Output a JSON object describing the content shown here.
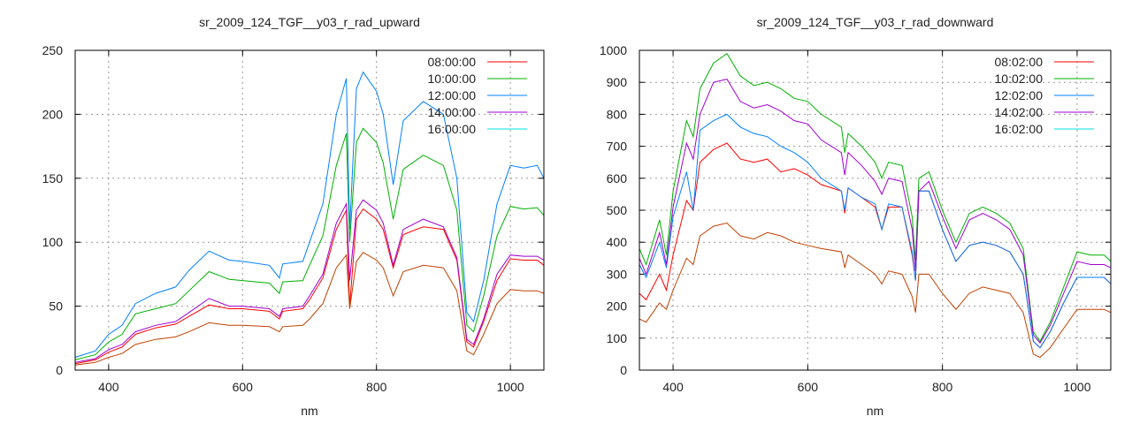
{
  "chart_data": [
    {
      "type": "line",
      "title": "sr_2009_124_TGF__y03_r_rad_upward",
      "xlabel": "nm",
      "ylabel": "",
      "xlim": [
        350,
        1050
      ],
      "ylim": [
        0,
        250
      ],
      "xticks": [
        400,
        600,
        800,
        1000
      ],
      "yticks": [
        0,
        50,
        100,
        150,
        200,
        250
      ],
      "grid": true,
      "legend": "top-right",
      "x": [
        350,
        380,
        400,
        420,
        440,
        470,
        500,
        520,
        550,
        580,
        600,
        640,
        655,
        660,
        690,
        700,
        720,
        740,
        755,
        760,
        770,
        780,
        800,
        810,
        825,
        840,
        870,
        900,
        920,
        935,
        945,
        960,
        980,
        1000,
        1020,
        1040,
        1050
      ],
      "series": [
        {
          "name": "08:00:00",
          "color": "#ff0000",
          "line_color": "#ff0000",
          "values": [
            5,
            8,
            14,
            18,
            28,
            33,
            36,
            42,
            51,
            48,
            48,
            46,
            40,
            46,
            48,
            55,
            72,
            110,
            125,
            50,
            118,
            126,
            118,
            110,
            80,
            106,
            112,
            110,
            86,
            22,
            18,
            38,
            70,
            87,
            86,
            86,
            82
          ]
        },
        {
          "name": "10:00:00",
          "color": "#00b000",
          "line_color": "#00b000",
          "values": [
            8,
            12,
            22,
            28,
            44,
            48,
            52,
            62,
            77,
            71,
            70,
            68,
            60,
            69,
            70,
            82,
            105,
            160,
            185,
            100,
            178,
            189,
            178,
            162,
            118,
            157,
            168,
            160,
            125,
            35,
            30,
            58,
            105,
            128,
            126,
            127,
            121
          ]
        },
        {
          "name": "12:00:00",
          "color": "#0080ff",
          "line_color": "#0080ff",
          "values": [
            10,
            15,
            28,
            35,
            52,
            60,
            65,
            78,
            93,
            86,
            85,
            82,
            72,
            83,
            85,
            100,
            130,
            200,
            228,
            110,
            220,
            233,
            218,
            200,
            145,
            195,
            210,
            200,
            150,
            45,
            38,
            70,
            130,
            160,
            158,
            160,
            150
          ]
        },
        {
          "name": "14:00:00",
          "color": "#a000d0",
          "line_color": "#a000d0",
          "values": [
            6,
            9,
            16,
            20,
            30,
            35,
            38,
            45,
            56,
            50,
            50,
            48,
            42,
            48,
            50,
            58,
            75,
            115,
            130,
            70,
            125,
            133,
            125,
            115,
            82,
            110,
            118,
            112,
            88,
            24,
            20,
            40,
            75,
            90,
            89,
            89,
            86
          ]
        },
        {
          "name": "16:00:00",
          "color": "#00e0e0",
          "line_color": "#c04000",
          "values": [
            4,
            6,
            10,
            13,
            20,
            24,
            26,
            30,
            37,
            35,
            35,
            34,
            30,
            34,
            35,
            40,
            52,
            80,
            90,
            48,
            85,
            92,
            86,
            80,
            58,
            77,
            82,
            80,
            62,
            15,
            12,
            28,
            52,
            63,
            62,
            62,
            60
          ]
        }
      ]
    },
    {
      "type": "line",
      "title": "sr_2009_124_TGF__y03_r_rad_downward",
      "xlabel": "nm",
      "ylabel": "",
      "xlim": [
        350,
        1050
      ],
      "ylim": [
        0,
        1000
      ],
      "xticks": [
        400,
        600,
        800,
        1000
      ],
      "yticks": [
        0,
        100,
        200,
        300,
        400,
        500,
        600,
        700,
        800,
        900,
        1000
      ],
      "grid": true,
      "legend": "top-right",
      "x": [
        350,
        360,
        380,
        390,
        400,
        420,
        430,
        440,
        460,
        480,
        500,
        520,
        540,
        560,
        580,
        600,
        620,
        650,
        655,
        660,
        680,
        700,
        710,
        720,
        740,
        755,
        760,
        765,
        780,
        800,
        820,
        840,
        860,
        880,
        900,
        920,
        935,
        945,
        960,
        980,
        1000,
        1020,
        1040,
        1050
      ],
      "series": [
        {
          "name": "08:02:00",
          "color": "#ff0000",
          "line_color": "#ff0000",
          "values": [
            240,
            220,
            300,
            250,
            360,
            530,
            500,
            650,
            690,
            710,
            660,
            650,
            660,
            620,
            630,
            610,
            580,
            560,
            490,
            570,
            540,
            510,
            440,
            510,
            510,
            360,
            280,
            560,
            560,
            440,
            340,
            390,
            400,
            390,
            370,
            300,
            90,
            70,
            120,
            210,
            290,
            290,
            290,
            270
          ]
        },
        {
          "name": "10:02:00",
          "color": "#00b000",
          "line_color": "#00b000",
          "values": [
            380,
            330,
            470,
            360,
            560,
            780,
            730,
            880,
            960,
            990,
            920,
            890,
            900,
            880,
            850,
            840,
            800,
            760,
            680,
            740,
            700,
            650,
            600,
            650,
            640,
            480,
            340,
            600,
            620,
            500,
            400,
            490,
            510,
            490,
            460,
            380,
            120,
            90,
            150,
            260,
            370,
            360,
            360,
            340
          ]
        },
        {
          "name": "12:02:00",
          "color": "#0080ff",
          "line_color": "#0080ff",
          "values": [
            330,
            290,
            400,
            320,
            480,
            620,
            500,
            750,
            780,
            800,
            760,
            740,
            730,
            700,
            680,
            650,
            600,
            560,
            500,
            570,
            540,
            520,
            440,
            520,
            510,
            370,
            280,
            560,
            560,
            440,
            340,
            390,
            400,
            390,
            370,
            300,
            90,
            70,
            120,
            210,
            290,
            290,
            290,
            270
          ]
        },
        {
          "name": "14:02:00",
          "color": "#a000d0",
          "line_color": "#a000d0",
          "values": [
            350,
            300,
            430,
            330,
            510,
            710,
            660,
            800,
            900,
            910,
            840,
            820,
            830,
            810,
            780,
            770,
            720,
            680,
            610,
            680,
            640,
            590,
            550,
            600,
            590,
            440,
            310,
            560,
            590,
            480,
            380,
            470,
            490,
            470,
            440,
            360,
            110,
            85,
            140,
            240,
            340,
            330,
            330,
            320
          ]
        },
        {
          "name": "16:02:00",
          "color": "#00e0e0",
          "line_color": "#c04000",
          "values": [
            160,
            150,
            210,
            190,
            250,
            350,
            330,
            420,
            450,
            460,
            420,
            410,
            430,
            420,
            400,
            390,
            380,
            370,
            320,
            360,
            330,
            300,
            270,
            310,
            300,
            230,
            180,
            300,
            300,
            240,
            190,
            240,
            260,
            250,
            240,
            180,
            50,
            40,
            70,
            130,
            190,
            190,
            190,
            180
          ]
        }
      ]
    }
  ]
}
